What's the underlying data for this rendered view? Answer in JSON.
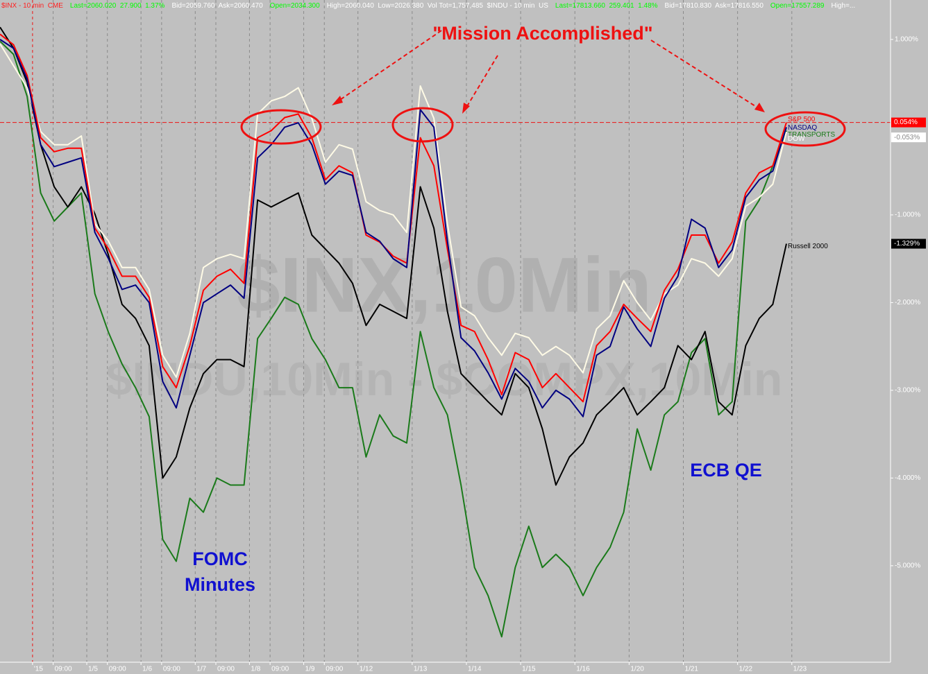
{
  "chart_data": {
    "type": "line",
    "header": [
      {
        "text": "$INX - 10 min  CME",
        "color": "#ff2020"
      },
      {
        "text": "Last=2060.020  27.900  1.37%",
        "color": "#00ff00"
      },
      {
        "text": "Bid=2059.760  Ask=2060.470",
        "color": "#ffffff"
      },
      {
        "text": "Open=2034.300",
        "color": "#00ff00"
      },
      {
        "text": "High=2060.040  Low=2026.380  Vol Tot=1,757,485  $INDU - 10 min  US",
        "color": "#ffffff"
      },
      {
        "text": "Last=17813.660  259.401  1.48%",
        "color": "#00ff00"
      },
      {
        "text": "Bid=17810.830  Ask=17816.550",
        "color": "#ffffff"
      },
      {
        "text": "Open=17557.289",
        "color": "#00ff00"
      },
      {
        "text": "High=...",
        "color": "#ffffff"
      }
    ],
    "watermark": [
      "$INX,10Min",
      "$INDU,10Min - $COMPX,10Min"
    ],
    "annotations": {
      "mission": "\"Mission Accomplished\"",
      "fomc": [
        "FOMC",
        "Minutes"
      ],
      "ecb": "ECB QE"
    },
    "x": [
      -0.6,
      -0.35,
      -0.1,
      0.15,
      0.4,
      0.65,
      0.9,
      1.15,
      1.4,
      1.65,
      1.9,
      2.15,
      2.4,
      2.65,
      2.9,
      3.15,
      3.4,
      3.65,
      3.9,
      4.15,
      4.4,
      4.65,
      4.9,
      5.15,
      5.4,
      5.65,
      5.9,
      6.15,
      6.4,
      6.65,
      6.9,
      7.15,
      7.4,
      7.65,
      7.9,
      8.15,
      8.4,
      8.65,
      8.9,
      9.15,
      9.4,
      9.65,
      9.9,
      10.15,
      10.4,
      10.65,
      10.9,
      11.15,
      11.4,
      11.65,
      11.9,
      12.15,
      12.4,
      12.65,
      12.9,
      13.15,
      13.4,
      13.65,
      13.9
    ],
    "series": [
      {
        "name": "TRANSPORTS",
        "color": "#1a7a1a",
        "values": [
          0.98,
          0.83,
          0.35,
          -0.75,
          -1.07,
          -0.91,
          -0.75,
          -1.9,
          -2.34,
          -2.7,
          -2.97,
          -3.3,
          -4.7,
          -4.95,
          -4.23,
          -4.39,
          -4.0,
          -4.08,
          -4.08,
          -2.41,
          -2.18,
          -1.94,
          -2.02,
          -2.41,
          -2.65,
          -2.97,
          -2.97,
          -3.76,
          -3.28,
          -3.52,
          -3.6,
          -2.33,
          -2.97,
          -3.28,
          -4.08,
          -5.02,
          -5.34,
          -5.81,
          -5.02,
          -4.55,
          -5.02,
          -4.87,
          -5.02,
          -5.34,
          -5.02,
          -4.79,
          -4.39,
          -3.44,
          -3.91,
          -3.28,
          -3.13,
          -2.57,
          -2.41,
          -3.28,
          -3.13,
          -1.07,
          -0.83,
          -0.44,
          -0.04
        ]
      },
      {
        "name": "Russell 2000",
        "color": "#000000",
        "last_value_label": "-1.329%",
        "values": [
          1.14,
          0.9,
          0.51,
          -0.2,
          -0.68,
          -0.91,
          -0.68,
          -0.99,
          -1.46,
          -2.02,
          -2.18,
          -2.49,
          -4.0,
          -3.76,
          -3.2,
          -2.81,
          -2.65,
          -2.65,
          -2.73,
          -0.83,
          -0.91,
          -0.83,
          -0.75,
          -1.23,
          -1.39,
          -1.55,
          -1.78,
          -2.26,
          -2.02,
          -2.1,
          -2.18,
          -0.68,
          -1.15,
          -2.1,
          -2.81,
          -2.97,
          -3.13,
          -3.28,
          -2.81,
          -2.97,
          -3.44,
          -4.08,
          -3.76,
          -3.6,
          -3.28,
          -3.13,
          -2.97,
          -3.28,
          -3.13,
          -2.97,
          -2.49,
          -2.65,
          -2.33,
          -3.13,
          -3.28,
          -2.49,
          -2.18,
          -2.02,
          -1.329
        ]
      },
      {
        "name": "DOW",
        "color": "#fffbe6",
        "last_value_label": "-0.053%",
        "values": [
          0.95,
          0.7,
          0.45,
          -0.05,
          -0.2,
          -0.2,
          -0.1,
          -1.1,
          -1.3,
          -1.6,
          -1.6,
          -1.85,
          -2.6,
          -2.85,
          -2.35,
          -1.6,
          -1.5,
          -1.45,
          -1.5,
          0.15,
          0.3,
          0.35,
          0.45,
          0.1,
          -0.4,
          -0.2,
          -0.25,
          -0.85,
          -0.95,
          -1.0,
          -1.2,
          0.47,
          0.1,
          -1.1,
          -2.05,
          -2.15,
          -2.4,
          -2.6,
          -2.35,
          -2.4,
          -2.6,
          -2.5,
          -2.6,
          -2.8,
          -2.3,
          -2.15,
          -1.75,
          -2.0,
          -2.2,
          -1.9,
          -1.8,
          -1.5,
          -1.55,
          -1.7,
          -1.5,
          -0.9,
          -0.8,
          -0.65,
          -0.053
        ]
      },
      {
        "name": "S&P 500",
        "color": "#ff0000",
        "last_value_label": "0.054%",
        "values": [
          1.06,
          0.94,
          0.59,
          -0.12,
          -0.28,
          -0.24,
          -0.24,
          -1.15,
          -1.39,
          -1.7,
          -1.7,
          -1.94,
          -2.73,
          -2.97,
          -2.49,
          -1.86,
          -1.7,
          -1.62,
          -1.78,
          -0.12,
          -0.04,
          0.11,
          0.15,
          -0.12,
          -0.6,
          -0.44,
          -0.52,
          -1.23,
          -1.31,
          -1.47,
          -1.55,
          -0.12,
          -0.44,
          -1.39,
          -2.26,
          -2.33,
          -2.65,
          -3.05,
          -2.57,
          -2.65,
          -2.97,
          -2.81,
          -2.97,
          -3.13,
          -2.49,
          -2.33,
          -2.02,
          -2.18,
          -2.33,
          -1.86,
          -1.62,
          -1.23,
          -1.23,
          -1.55,
          -1.31,
          -0.75,
          -0.52,
          -0.44,
          0.054
        ]
      },
      {
        "name": "NASDAQ",
        "color": "#000080",
        "values": [
          1.0,
          0.9,
          0.55,
          -0.2,
          -0.45,
          -0.4,
          -0.35,
          -1.2,
          -1.5,
          -1.85,
          -1.8,
          -2.0,
          -2.9,
          -3.2,
          -2.6,
          -2.0,
          -1.9,
          -1.8,
          -1.95,
          -0.35,
          -0.2,
          0.0,
          0.05,
          -0.2,
          -0.65,
          -0.5,
          -0.55,
          -1.2,
          -1.3,
          -1.5,
          -1.6,
          0.2,
          0.0,
          -1.3,
          -2.4,
          -2.55,
          -2.8,
          -3.1,
          -2.75,
          -2.9,
          -3.2,
          -3.0,
          -3.1,
          -3.3,
          -2.6,
          -2.5,
          -2.05,
          -2.3,
          -2.5,
          -1.95,
          -1.7,
          -1.05,
          -1.15,
          -1.6,
          -1.4,
          -0.8,
          -0.6,
          -0.5,
          0.0
        ]
      }
    ],
    "xlim": [
      -0.6,
      15.82
    ],
    "xticks": [
      {
        "value": 0,
        "label": "'15"
      },
      {
        "value": 0.38,
        "label": "09:00"
      },
      {
        "value": 1,
        "label": "1/5"
      },
      {
        "value": 1.38,
        "label": "09:00"
      },
      {
        "value": 2,
        "label": "1/6"
      },
      {
        "value": 2.38,
        "label": "09:00"
      },
      {
        "value": 3,
        "label": "1/7"
      },
      {
        "value": 3.38,
        "label": "09:00"
      },
      {
        "value": 4,
        "label": "1/8"
      },
      {
        "value": 4.38,
        "label": "09:00"
      },
      {
        "value": 5,
        "label": "1/9"
      },
      {
        "value": 5.38,
        "label": "09:00"
      },
      {
        "value": 6,
        "label": "1/12"
      },
      {
        "value": 7,
        "label": "1/13"
      },
      {
        "value": 8,
        "label": "1/14"
      },
      {
        "value": 9,
        "label": "1/15"
      },
      {
        "value": 10,
        "label": "1/16"
      },
      {
        "value": 11,
        "label": "1/20"
      },
      {
        "value": 12,
        "label": "1/21"
      },
      {
        "value": 13,
        "label": "1/22"
      },
      {
        "value": 14,
        "label": "1/23"
      }
    ],
    "ylim": [
      -6.1,
      1.45
    ],
    "yticks": [
      {
        "value": 1,
        "label": "1.000%"
      },
      {
        "value": -1,
        "label": "-1.000%"
      },
      {
        "value": -2,
        "label": "-2.000%"
      },
      {
        "value": -3,
        "label": "-3.000%"
      },
      {
        "value": -4,
        "label": "-4.000%"
      },
      {
        "value": -5,
        "label": "-5.000%"
      }
    ]
  }
}
